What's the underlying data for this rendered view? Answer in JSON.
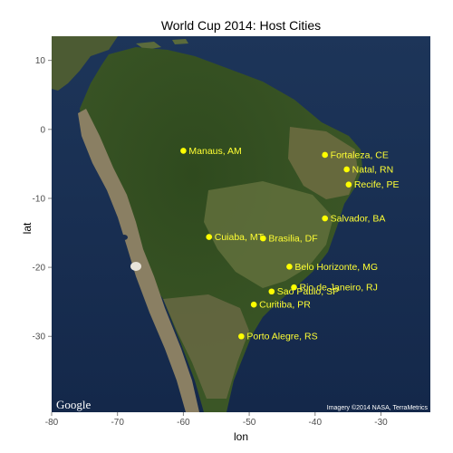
{
  "title": "World Cup 2014: Host Cities",
  "chart_data": {
    "type": "scatter",
    "title": "World Cup 2014: Host Cities",
    "xlabel": "lon",
    "ylabel": "lat",
    "xlim": [
      -80,
      -22.5
    ],
    "ylim": [
      -41,
      13.5
    ],
    "x_ticks": [
      -80,
      -70,
      -60,
      -50,
      -40,
      -30
    ],
    "y_ticks": [
      10,
      0,
      -10,
      -20,
      -30
    ],
    "point_color": "#ffff00",
    "label_color": "#ffff33",
    "basemap": "satellite",
    "grid": false,
    "points": [
      {
        "name": "Manaus, AM",
        "lon": -60.0,
        "lat": -3.1
      },
      {
        "name": "Fortaleza, CE",
        "lon": -38.5,
        "lat": -3.7
      },
      {
        "name": "Natal, RN",
        "lon": -35.2,
        "lat": -5.8
      },
      {
        "name": "Recife, PE",
        "lon": -34.9,
        "lat": -8.0
      },
      {
        "name": "Salvador, BA",
        "lon": -38.5,
        "lat": -12.9
      },
      {
        "name": "Cuiaba, MT",
        "lon": -56.1,
        "lat": -15.6
      },
      {
        "name": "Brasilia, DF",
        "lon": -47.9,
        "lat": -15.8
      },
      {
        "name": "Belo Horizonte, MG",
        "lon": -43.9,
        "lat": -19.9
      },
      {
        "name": "Rio de Janeiro, RJ",
        "lon": -43.2,
        "lat": -22.9
      },
      {
        "name": "Sao Paulo, SP",
        "lon": -46.6,
        "lat": -23.5
      },
      {
        "name": "Curitiba, PR",
        "lon": -49.3,
        "lat": -25.4
      },
      {
        "name": "Porto Alegre, RS",
        "lon": -51.2,
        "lat": -30.0
      }
    ]
  },
  "attribution": {
    "logo": "Google",
    "imagery": "Imagery ©2014 NASA, TerraMetrics"
  }
}
